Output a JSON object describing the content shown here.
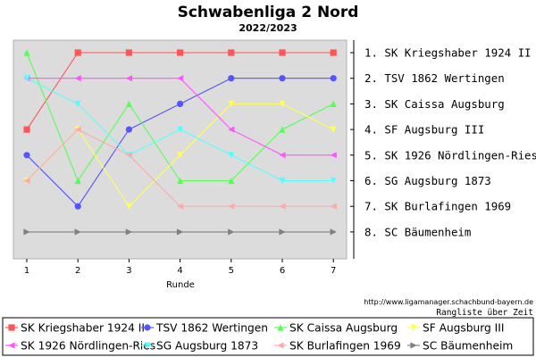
{
  "chart_data": {
    "type": "line",
    "title": "Schwabenliga 2 Nord",
    "subtitle": "2022/2023",
    "xlabel": "Runde",
    "x": [
      1,
      2,
      3,
      4,
      5,
      6,
      7
    ],
    "ylim": [
      1,
      8
    ],
    "y_inverted": true,
    "grid": false,
    "background": "#dcdcdc",
    "legend_position": "bottom",
    "right_labels": [
      "1. SK Kriegshaber 1924 II",
      "2. TSV 1862 Wertingen",
      "3. SK Caissa Augsburg",
      "4. SF Augsburg III",
      "5. SK 1926 Nördlingen-Ries",
      "6. SG Augsburg 1873",
      "7. SK Burlafingen 1969",
      "8. SC Bäumenheim"
    ],
    "series": [
      {
        "name": "SK Kriegshaber 1924 II",
        "color": "#ff5555",
        "marker": "square",
        "values": [
          4,
          1,
          1,
          1,
          1,
          1,
          1
        ]
      },
      {
        "name": "TSV 1862 Wertingen",
        "color": "#5555ff",
        "marker": "circle",
        "values": [
          5,
          7,
          4,
          3,
          2,
          2,
          2
        ]
      },
      {
        "name": "SK Caissa Augsburg",
        "color": "#55ff55",
        "marker": "triangle-up",
        "values": [
          1,
          6,
          3,
          6,
          6,
          4,
          3
        ]
      },
      {
        "name": "SF Augsburg III",
        "color": "#ffff55",
        "marker": "triangle-down",
        "values": [
          6,
          4,
          7,
          5,
          3,
          3,
          4
        ]
      },
      {
        "name": "SK 1926 Nördlingen-Ries",
        "color": "#ff55ff",
        "marker": "triangle-left",
        "values": [
          2,
          2,
          2,
          2,
          4,
          5,
          5
        ]
      },
      {
        "name": "SG Augsburg 1873",
        "color": "#55ffff",
        "marker": "triangle-down",
        "values": [
          2,
          3,
          5,
          4,
          5,
          6,
          6
        ]
      },
      {
        "name": "SK Burlafingen 1969",
        "color": "#ffaaaa",
        "marker": "triangle-left",
        "values": [
          6,
          4,
          5,
          7,
          7,
          7,
          7
        ]
      },
      {
        "name": "SC Bäumenheim",
        "color": "#808080",
        "marker": "triangle-right",
        "values": [
          8,
          8,
          8,
          8,
          8,
          8,
          8
        ]
      }
    ]
  },
  "footer": {
    "source": "http://www.ligamanager.schachbund-bayern.de",
    "caption": "Rangliste über Zeit"
  }
}
